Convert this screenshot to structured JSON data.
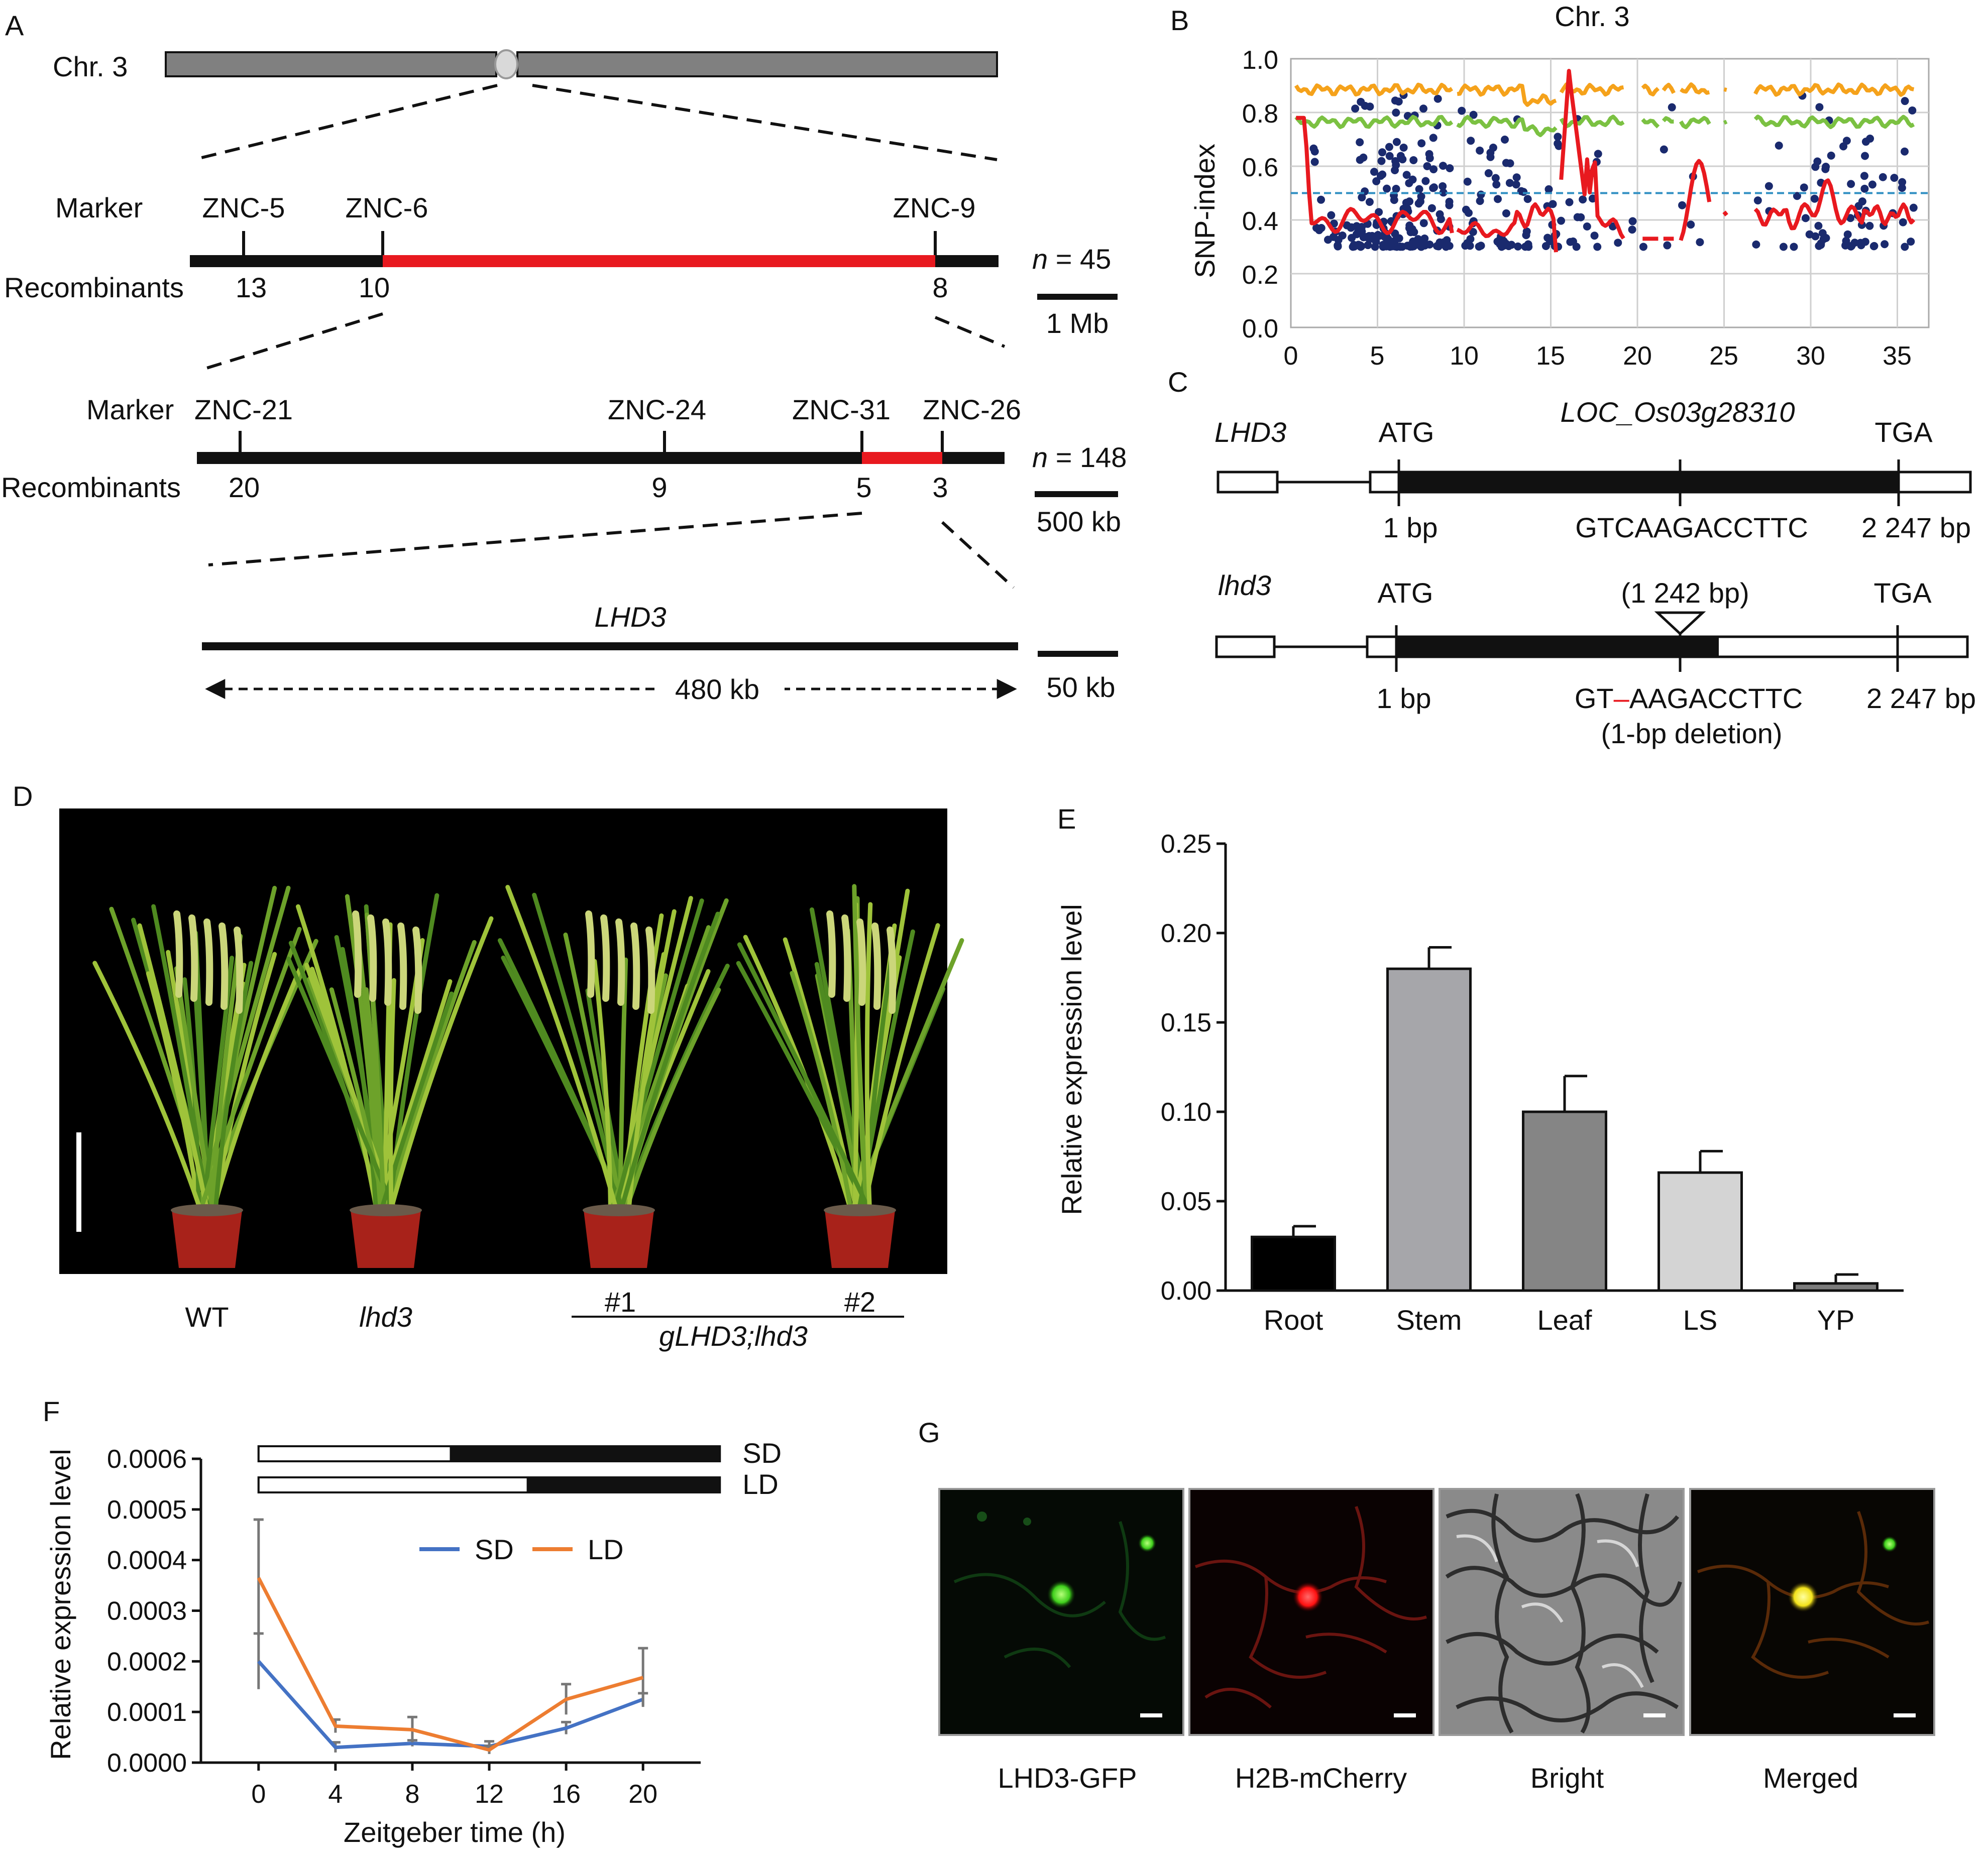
{
  "panel_letters": {
    "a": "A",
    "b": "B",
    "c": "C",
    "d": "D",
    "e": "E",
    "f": "F",
    "g": "G"
  },
  "panel_a": {
    "chr_label": "Chr. 3",
    "marker_label": "Marker",
    "recombinants_label": "Recombinants",
    "row1": {
      "markers": [
        "ZNC-5",
        "ZNC-6",
        "ZNC-9"
      ],
      "counts": [
        "13",
        "10",
        "8"
      ],
      "n_italic": "n",
      "n_value": " = 45",
      "scale": "1 Mb"
    },
    "row2": {
      "markers": [
        "ZNC-21",
        "ZNC-24",
        "ZNC-31",
        "ZNC-26"
      ],
      "counts": [
        "20",
        "9",
        "5",
        "3"
      ],
      "n_italic": "n",
      "n_value": " = 148",
      "scale": "500 kb"
    },
    "row3": {
      "gene": "LHD3",
      "length": "480 kb",
      "scale": "50 kb"
    },
    "colors": {
      "red": "#e8191f",
      "chromosome": "#808080"
    }
  },
  "panel_b": {
    "title": "Chr. 3",
    "ylabel": "SNP-index",
    "xticks": [
      "0",
      "5",
      "10",
      "15",
      "20",
      "25",
      "30",
      "35"
    ],
    "yticks": [
      "0.0",
      "0.2",
      "0.4",
      "0.6",
      "0.8",
      "1.0"
    ],
    "colors": {
      "orange": "#f5a21b",
      "green": "#7bc142",
      "red": "#e8191f",
      "dots": "#1a2a6e",
      "threshold": "#2f8fc2"
    }
  },
  "panel_c": {
    "wt_label": "LHD3",
    "mut_label": "lhd3",
    "locus": "LOC_Os03g28310",
    "start": "ATG",
    "stop": "TGA",
    "pos_start": "1 bp",
    "pos_end": "2 247 bp",
    "wt_seq": "GTCAAGACCTTC",
    "mut_position": "(1 242 bp)",
    "mut_seq_a": "GT",
    "mut_seq_b": "–",
    "mut_seq_c": "AAGACCTTC",
    "mut_note": "(1-bp deletion)"
  },
  "panel_d": {
    "labels": [
      "WT",
      "lhd3",
      "#1",
      "#2"
    ],
    "group_label": "gLHD3;lhd3"
  },
  "chart_data": [
    {
      "panel": "E",
      "type": "bar",
      "categories": [
        "Root",
        "Stem",
        "Leaf",
        "LS",
        "YP"
      ],
      "values": [
        0.03,
        0.18,
        0.1,
        0.066,
        0.004
      ],
      "errors": [
        0.006,
        0.012,
        0.02,
        0.012,
        0.005
      ],
      "bar_colors": [
        "#000000",
        "#a6a6aa",
        "#858585",
        "#d4d4d4",
        "#7d7d7d"
      ],
      "ylabel": "Relative expression level",
      "yticks": [
        "0.00",
        "0.05",
        "0.10",
        "0.15",
        "0.20",
        "0.25"
      ],
      "ylim": [
        0,
        0.25
      ]
    },
    {
      "panel": "F",
      "type": "line",
      "x": [
        0,
        4,
        8,
        12,
        16,
        20
      ],
      "series": [
        {
          "name": "SD",
          "color": "#4472c4",
          "values": [
            0.0002,
            3e-05,
            3.8e-05,
            3.2e-05,
            6.8e-05,
            0.000125
          ],
          "errors": [
            5.5e-05,
            1e-05,
            6e-06,
            1e-05,
            1.2e-05,
            1.2e-05
          ]
        },
        {
          "name": "LD",
          "color": "#ed7d31",
          "values": [
            0.000365,
            7.2e-05,
            6.5e-05,
            2.5e-05,
            0.000125,
            0.000168
          ],
          "errors": [
            0.000115,
            1.3e-05,
            2.5e-05,
            8e-06,
            3e-05,
            5.8e-05
          ]
        }
      ],
      "xlabel": "Zeitgeber time (h)",
      "ylabel": "Relative expression level",
      "xticks": [
        "0",
        "4",
        "8",
        "12",
        "16",
        "20"
      ],
      "yticks": [
        "0.0000",
        "0.0001",
        "0.0002",
        "0.0003",
        "0.0004",
        "0.0005",
        "0.0006"
      ],
      "ylim": [
        0,
        0.0006
      ],
      "photoperiod_labels": [
        "SD",
        "LD"
      ],
      "photoperiod_light_hours": [
        10,
        14
      ]
    }
  ],
  "panel_g": {
    "labels": [
      "LHD3-GFP",
      "H2B-mCherry",
      "Bright",
      "Merged"
    ]
  }
}
